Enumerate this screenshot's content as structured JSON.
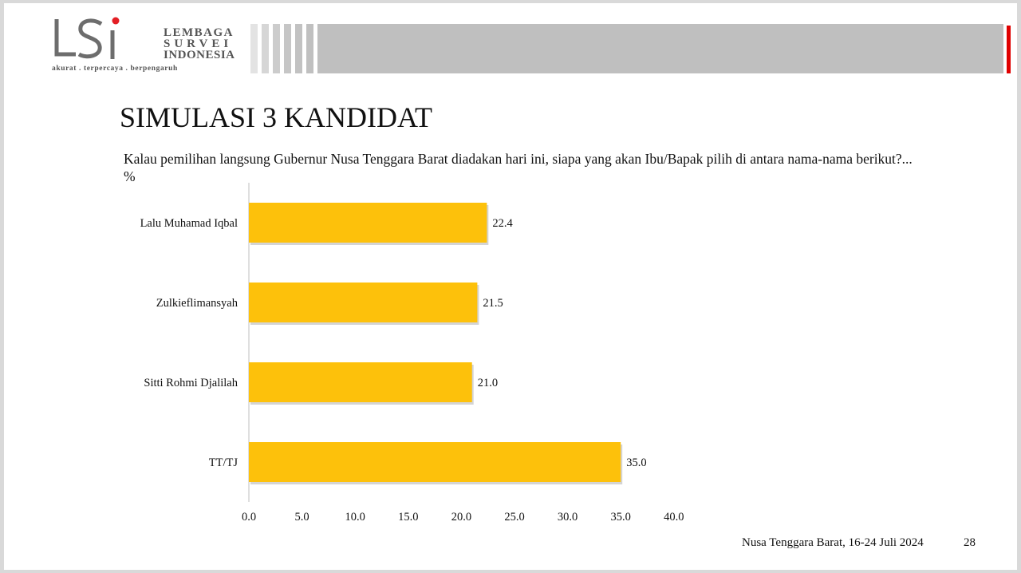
{
  "logo": {
    "line1": "LEMBAGA",
    "line2": "SURVEI",
    "line3": "INDONESIA",
    "tagline": "akurat . terpercaya . berpengaruh"
  },
  "colors": {
    "bar": "#fdc10b",
    "header_gray": "#bfbfbf",
    "header_red": "#e00000",
    "logo_red": "#e31e24",
    "logo_gray": "#6d6d6d"
  },
  "slide": {
    "title": "SIMULASI 3 KANDIDAT",
    "question": "Kalau pemilihan langsung Gubernur Nusa Tenggara Barat diadakan hari ini, siapa yang akan Ibu/Bapak pilih di antara nama-nama berikut?... %",
    "footer": "Nusa Tenggara Barat, 16-24 Juli 2024",
    "page_number": "28"
  },
  "chart_data": {
    "type": "bar",
    "orientation": "horizontal",
    "categories": [
      "Lalu Muhamad Iqbal",
      "Zulkieflimansyah",
      "Sitti Rohmi Djalilah",
      "TT/TJ"
    ],
    "values": [
      22.4,
      21.5,
      21.0,
      35.0
    ],
    "value_labels": [
      "22.4",
      "21.5",
      "21.0",
      "35.0"
    ],
    "xlim": [
      0,
      40
    ],
    "xticks": [
      "0.0",
      "5.0",
      "10.0",
      "15.0",
      "20.0",
      "25.0",
      "30.0",
      "35.0",
      "40.0"
    ],
    "grid": false,
    "legend": "none"
  }
}
